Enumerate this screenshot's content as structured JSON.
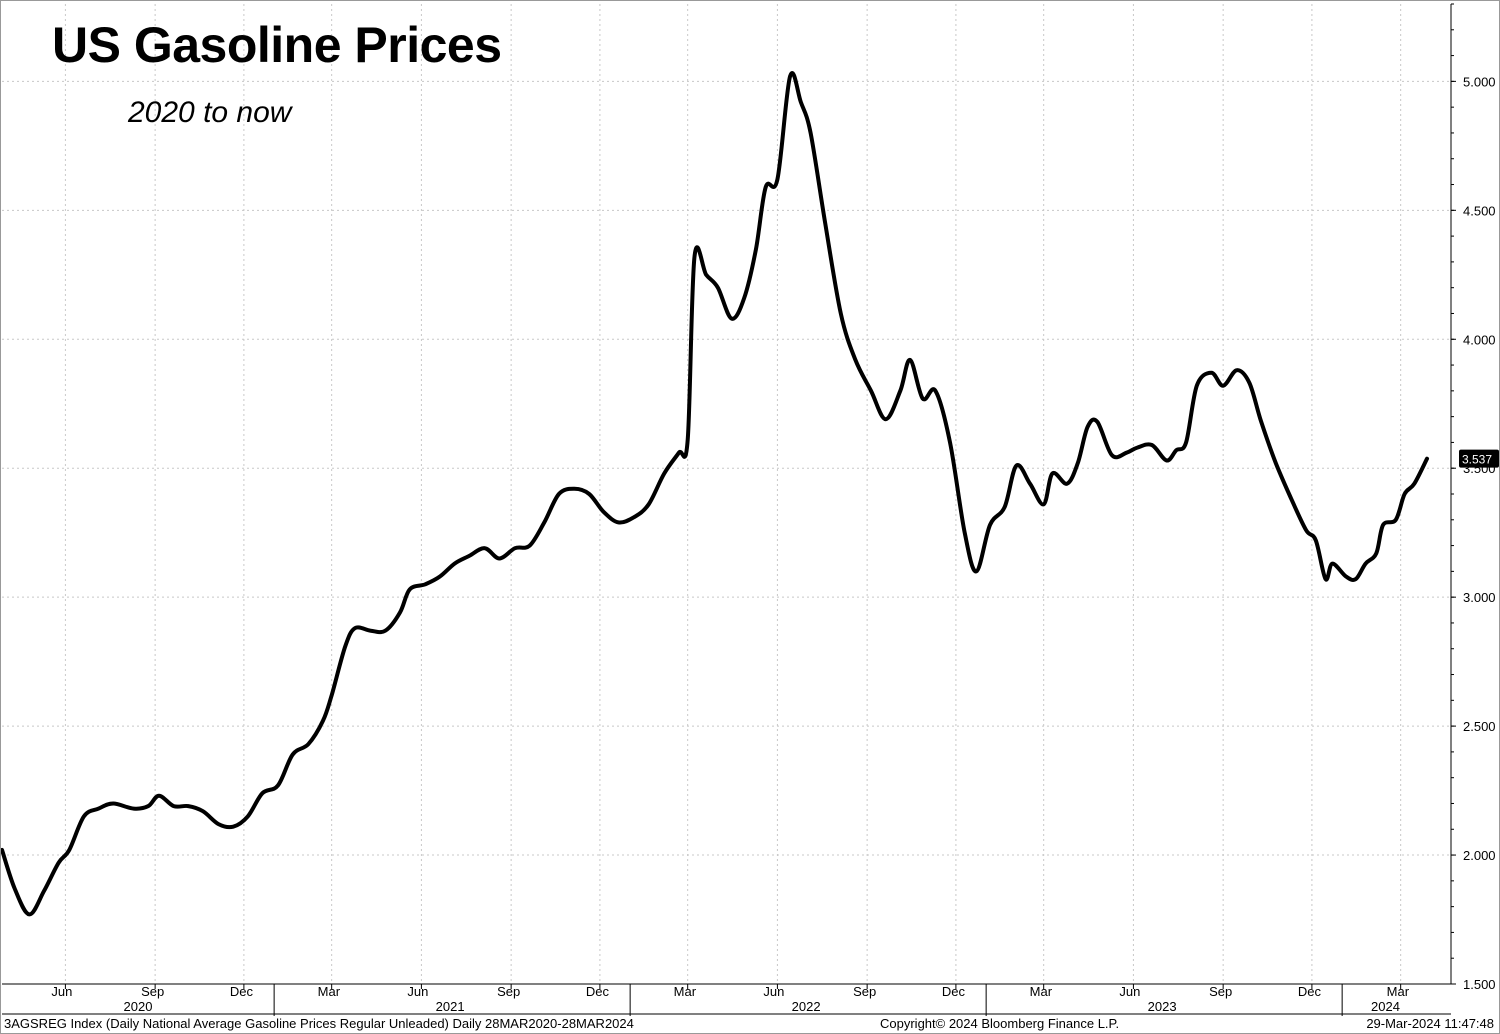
{
  "title": "US Gasoline Prices",
  "subtitle": "2020 to now",
  "footer": {
    "left": "3AGSREG Index (Daily National Average Gasoline Prices Regular Unleaded)  Daily 28MAR2020-28MAR2024",
    "center": "Copyright© 2024 Bloomberg Finance L.P.",
    "right": "29-Mar-2024 11:47:48"
  },
  "chart_data": {
    "type": "line",
    "title": "US Gasoline Prices",
    "subtitle": "2020 to now",
    "x_range": [
      "2020-03-28",
      "2024-03-28"
    ],
    "ylim": [
      1.5,
      5.3
    ],
    "y_ticks": [
      "1.500",
      "2.000",
      "2.500",
      "3.000",
      "3.500",
      "4.000",
      "4.500",
      "5.000"
    ],
    "y_axis_position": "right",
    "x_ticks": [
      {
        "label": "Jun",
        "date": "2020-06-01"
      },
      {
        "label": "Sep",
        "date": "2020-09-01"
      },
      {
        "label": "Dec",
        "date": "2020-12-01"
      },
      {
        "label": "Mar",
        "date": "2021-03-01"
      },
      {
        "label": "Jun",
        "date": "2021-06-01"
      },
      {
        "label": "Sep",
        "date": "2021-09-01"
      },
      {
        "label": "Dec",
        "date": "2021-12-01"
      },
      {
        "label": "Mar",
        "date": "2022-03-01"
      },
      {
        "label": "Jun",
        "date": "2022-06-01"
      },
      {
        "label": "Sep",
        "date": "2022-09-01"
      },
      {
        "label": "Dec",
        "date": "2022-12-01"
      },
      {
        "label": "Mar",
        "date": "2023-03-01"
      },
      {
        "label": "Jun",
        "date": "2023-06-01"
      },
      {
        "label": "Sep",
        "date": "2023-09-01"
      },
      {
        "label": "Dec",
        "date": "2023-12-01"
      },
      {
        "label": "Mar",
        "date": "2024-03-01"
      }
    ],
    "year_labels": [
      {
        "label": "2020",
        "date": "2020-08-15"
      },
      {
        "label": "2021",
        "date": "2021-07-01"
      },
      {
        "label": "2022",
        "date": "2022-07-01"
      },
      {
        "label": "2023",
        "date": "2023-07-01"
      },
      {
        "label": "2024",
        "date": "2024-02-15"
      }
    ],
    "year_boundaries": [
      "2021-01-01",
      "2022-01-01",
      "2023-01-01",
      "2024-01-01"
    ],
    "grid": true,
    "last_value": "3.537",
    "series": [
      {
        "points": [
          [
            "2020-03-28",
            2.02
          ],
          [
            "2020-04-10",
            1.87
          ],
          [
            "2020-04-25",
            1.77
          ],
          [
            "2020-05-10",
            1.86
          ],
          [
            "2020-05-25",
            1.97
          ],
          [
            "2020-06-05",
            2.02
          ],
          [
            "2020-06-20",
            2.15
          ],
          [
            "2020-07-05",
            2.18
          ],
          [
            "2020-07-20",
            2.2
          ],
          [
            "2020-08-10",
            2.18
          ],
          [
            "2020-08-25",
            2.19
          ],
          [
            "2020-09-05",
            2.23
          ],
          [
            "2020-09-20",
            2.19
          ],
          [
            "2020-10-05",
            2.19
          ],
          [
            "2020-10-20",
            2.17
          ],
          [
            "2020-11-05",
            2.12
          ],
          [
            "2020-11-20",
            2.11
          ],
          [
            "2020-12-05",
            2.15
          ],
          [
            "2020-12-20",
            2.24
          ],
          [
            "2021-01-05",
            2.27
          ],
          [
            "2021-01-20",
            2.39
          ],
          [
            "2021-02-05",
            2.43
          ],
          [
            "2021-02-20",
            2.52
          ],
          [
            "2021-03-01",
            2.62
          ],
          [
            "2021-03-15",
            2.81
          ],
          [
            "2021-03-25",
            2.88
          ],
          [
            "2021-04-10",
            2.87
          ],
          [
            "2021-04-25",
            2.87
          ],
          [
            "2021-05-10",
            2.94
          ],
          [
            "2021-05-20",
            3.03
          ],
          [
            "2021-06-05",
            3.05
          ],
          [
            "2021-06-20",
            3.08
          ],
          [
            "2021-07-05",
            3.13
          ],
          [
            "2021-07-20",
            3.16
          ],
          [
            "2021-08-05",
            3.19
          ],
          [
            "2021-08-20",
            3.15
          ],
          [
            "2021-09-05",
            3.19
          ],
          [
            "2021-09-20",
            3.2
          ],
          [
            "2021-10-05",
            3.29
          ],
          [
            "2021-10-20",
            3.4
          ],
          [
            "2021-11-05",
            3.42
          ],
          [
            "2021-11-20",
            3.4
          ],
          [
            "2021-12-05",
            3.33
          ],
          [
            "2021-12-20",
            3.29
          ],
          [
            "2022-01-05",
            3.31
          ],
          [
            "2022-01-20",
            3.36
          ],
          [
            "2022-02-05",
            3.48
          ],
          [
            "2022-02-20",
            3.56
          ],
          [
            "2022-03-01",
            3.61
          ],
          [
            "2022-03-08",
            4.32
          ],
          [
            "2022-03-20",
            4.25
          ],
          [
            "2022-04-01",
            4.2
          ],
          [
            "2022-04-15",
            4.08
          ],
          [
            "2022-04-28",
            4.16
          ],
          [
            "2022-05-10",
            4.35
          ],
          [
            "2022-05-20",
            4.59
          ],
          [
            "2022-06-01",
            4.62
          ],
          [
            "2022-06-14",
            5.02
          ],
          [
            "2022-06-25",
            4.92
          ],
          [
            "2022-07-05",
            4.8
          ],
          [
            "2022-07-20",
            4.45
          ],
          [
            "2022-08-05",
            4.1
          ],
          [
            "2022-08-20",
            3.92
          ],
          [
            "2022-09-05",
            3.8
          ],
          [
            "2022-09-20",
            3.69
          ],
          [
            "2022-10-05",
            3.8
          ],
          [
            "2022-10-15",
            3.92
          ],
          [
            "2022-10-28",
            3.77
          ],
          [
            "2022-11-10",
            3.8
          ],
          [
            "2022-11-25",
            3.6
          ],
          [
            "2022-12-10",
            3.25
          ],
          [
            "2022-12-22",
            3.1
          ],
          [
            "2023-01-05",
            3.28
          ],
          [
            "2023-01-20",
            3.35
          ],
          [
            "2023-02-01",
            3.51
          ],
          [
            "2023-02-15",
            3.44
          ],
          [
            "2023-03-01",
            3.36
          ],
          [
            "2023-03-10",
            3.48
          ],
          [
            "2023-03-25",
            3.44
          ],
          [
            "2023-04-05",
            3.52
          ],
          [
            "2023-04-15",
            3.66
          ],
          [
            "2023-04-25",
            3.68
          ],
          [
            "2023-05-10",
            3.55
          ],
          [
            "2023-05-25",
            3.56
          ],
          [
            "2023-06-05",
            3.58
          ],
          [
            "2023-06-20",
            3.59
          ],
          [
            "2023-07-05",
            3.53
          ],
          [
            "2023-07-15",
            3.57
          ],
          [
            "2023-07-25",
            3.6
          ],
          [
            "2023-08-05",
            3.82
          ],
          [
            "2023-08-20",
            3.87
          ],
          [
            "2023-09-01",
            3.82
          ],
          [
            "2023-09-15",
            3.88
          ],
          [
            "2023-09-28",
            3.83
          ],
          [
            "2023-10-10",
            3.68
          ],
          [
            "2023-10-25",
            3.52
          ],
          [
            "2023-11-10",
            3.38
          ],
          [
            "2023-11-25",
            3.26
          ],
          [
            "2023-12-05",
            3.22
          ],
          [
            "2023-12-15",
            3.07
          ],
          [
            "2023-12-22",
            3.13
          ],
          [
            "2024-01-05",
            3.08
          ],
          [
            "2024-01-15",
            3.07
          ],
          [
            "2024-01-25",
            3.13
          ],
          [
            "2024-02-05",
            3.17
          ],
          [
            "2024-02-12",
            3.28
          ],
          [
            "2024-02-25",
            3.3
          ],
          [
            "2024-03-05",
            3.4
          ],
          [
            "2024-03-15",
            3.44
          ],
          [
            "2024-03-28",
            3.537
          ]
        ]
      }
    ]
  }
}
